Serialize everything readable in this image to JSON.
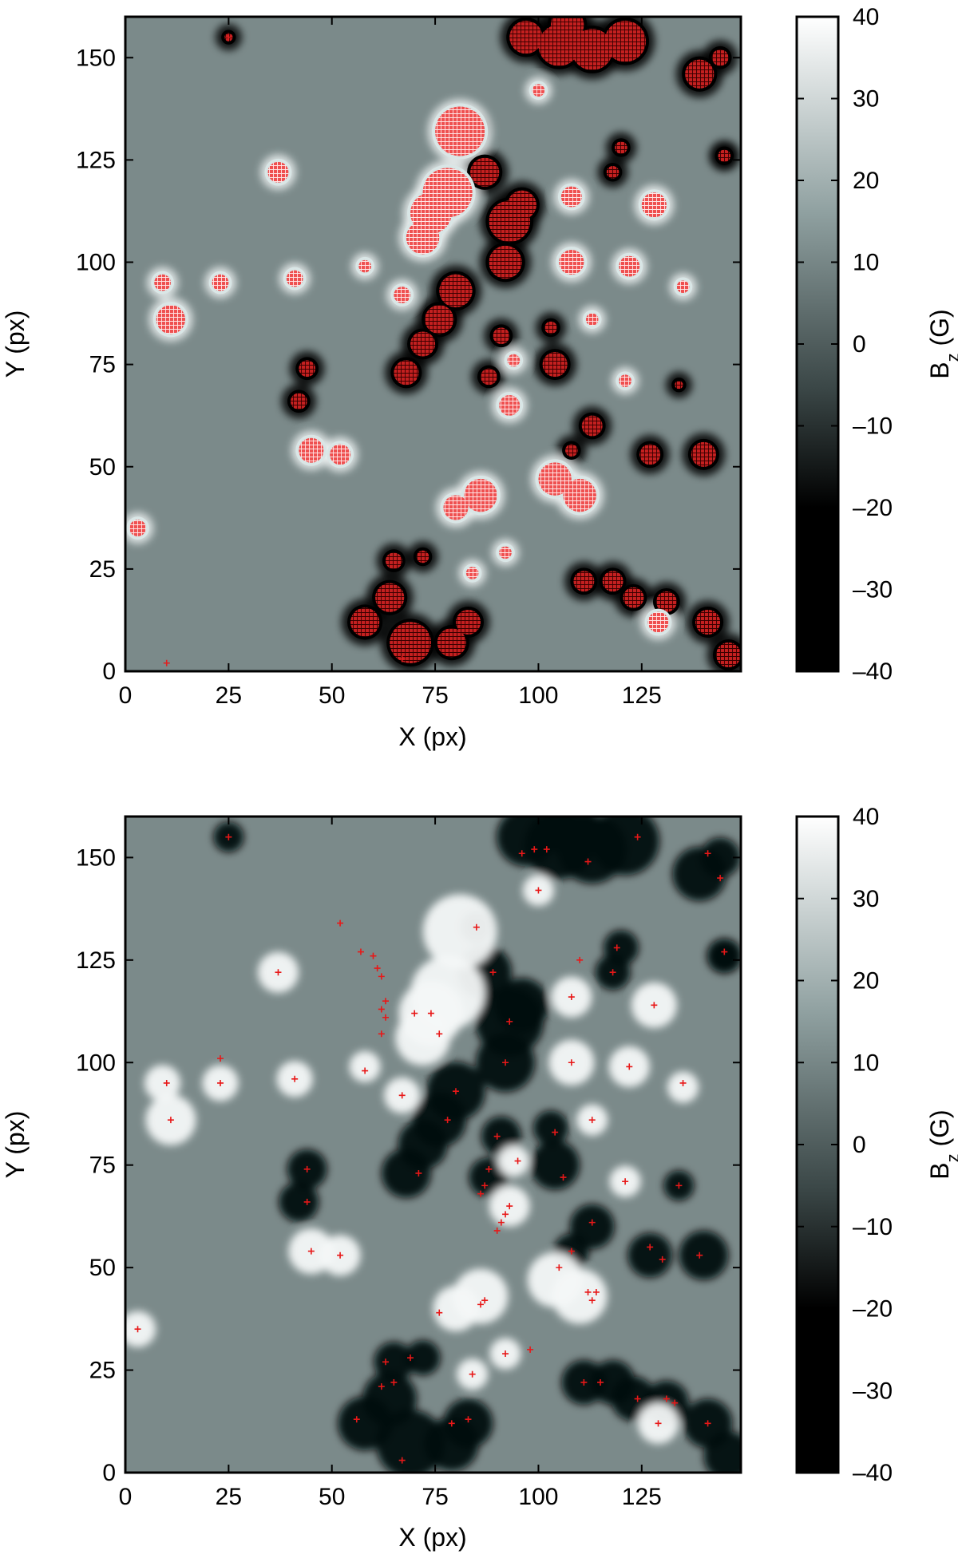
{
  "chart_data": [
    {
      "type": "heatmap",
      "name": "top-panel",
      "xlabel": "X (px)",
      "ylabel": "Y (px)",
      "xlim": [
        0,
        149
      ],
      "ylim": [
        0,
        160
      ],
      "x_ticks": [
        0,
        25,
        50,
        75,
        100,
        125
      ],
      "x_tick_labels": [
        "0",
        "25",
        "50",
        "75",
        "100",
        "125"
      ],
      "y_ticks": [
        0,
        25,
        50,
        75,
        100,
        125,
        150
      ],
      "y_tick_labels": [
        "0",
        "25",
        "50",
        "75",
        "100",
        "125",
        "150"
      ],
      "grid": false,
      "colorbar": {
        "label": "B",
        "label_sub": "z",
        "label_unit": " (G)",
        "range": [
          -40,
          40
        ],
        "ticks": [
          -40,
          -30,
          -20,
          -10,
          0,
          10,
          20,
          30,
          40
        ],
        "tick_labels": [
          "–40",
          "–30",
          "–20",
          "–10",
          "0",
          "10",
          "20",
          "30",
          "40"
        ],
        "colormap": [
          "#000000",
          "#3f4b4b",
          "#8c9a9a",
          "#ffffff"
        ]
      },
      "overlay": "feature regions marked with red crosses; positive regions outlined in light, negative regions outlined in black",
      "positive_regions": [
        [
          81,
          132,
          6
        ],
        [
          78,
          117,
          6
        ],
        [
          74,
          112,
          5
        ],
        [
          72,
          106,
          4
        ],
        [
          37,
          122,
          2.5
        ],
        [
          11,
          86,
          3.5
        ],
        [
          9,
          95,
          2
        ],
        [
          23,
          95,
          2
        ],
        [
          41,
          96,
          2
        ],
        [
          58,
          99,
          1.5
        ],
        [
          67,
          92,
          2
        ],
        [
          45,
          54,
          3
        ],
        [
          52,
          53,
          2.5
        ],
        [
          3,
          35,
          2
        ],
        [
          86,
          43,
          4
        ],
        [
          80,
          40,
          3
        ],
        [
          93,
          65,
          2.5
        ],
        [
          94,
          76,
          1.5
        ],
        [
          104,
          47,
          4
        ],
        [
          110,
          43,
          4
        ],
        [
          108,
          100,
          3
        ],
        [
          122,
          99,
          2.5
        ],
        [
          128,
          114,
          3
        ],
        [
          108,
          116,
          2.5
        ],
        [
          129,
          12,
          2.5
        ],
        [
          100,
          142,
          1.5
        ],
        [
          113,
          86,
          1.5
        ],
        [
          121,
          71,
          1.5
        ],
        [
          135,
          94,
          1.5
        ],
        [
          92,
          29,
          1.5
        ],
        [
          84,
          24,
          1.5
        ]
      ],
      "negative_regions": [
        [
          97,
          155,
          4
        ],
        [
          105,
          153,
          5
        ],
        [
          113,
          152,
          5
        ],
        [
          121,
          154,
          5
        ],
        [
          107,
          158,
          4
        ],
        [
          139,
          146,
          3.5
        ],
        [
          144,
          150,
          2
        ],
        [
          145,
          126,
          1.5
        ],
        [
          25,
          155,
          1
        ],
        [
          85,
          133,
          1.2
        ],
        [
          87,
          122,
          3.5
        ],
        [
          93,
          110,
          5
        ],
        [
          92,
          100,
          4
        ],
        [
          96,
          114,
          3.5
        ],
        [
          80,
          93,
          4
        ],
        [
          76,
          86,
          3.5
        ],
        [
          72,
          80,
          3
        ],
        [
          68,
          73,
          3
        ],
        [
          44,
          74,
          2
        ],
        [
          42,
          66,
          2
        ],
        [
          91,
          82,
          2
        ],
        [
          88,
          72,
          2
        ],
        [
          104,
          75,
          3
        ],
        [
          103,
          84,
          1.5
        ],
        [
          113,
          60,
          2.5
        ],
        [
          108,
          54,
          1.5
        ],
        [
          127,
          53,
          2.5
        ],
        [
          140,
          53,
          3
        ],
        [
          111,
          22,
          2.5
        ],
        [
          118,
          22,
          2.5
        ],
        [
          123,
          18,
          2.5
        ],
        [
          131,
          17,
          2.5
        ],
        [
          141,
          12,
          3
        ],
        [
          146,
          4,
          3
        ],
        [
          65,
          27,
          2
        ],
        [
          64,
          18,
          3.5
        ],
        [
          58,
          12,
          3.5
        ],
        [
          72,
          28,
          1.5
        ],
        [
          69,
          7,
          5
        ],
        [
          79,
          7,
          3.5
        ],
        [
          83,
          12,
          3
        ],
        [
          120,
          128,
          1.5
        ],
        [
          118,
          122,
          1.5
        ],
        [
          134,
          70,
          1
        ],
        [
          145,
          126,
          1.2
        ]
      ],
      "isolated_marks": [
        [
          10,
          2
        ],
        [
          67,
          3
        ],
        [
          25,
          155
        ]
      ]
    },
    {
      "type": "heatmap",
      "name": "bottom-panel",
      "xlabel": "X (px)",
      "ylabel": "Y (px)",
      "xlim": [
        0,
        149
      ],
      "ylim": [
        0,
        160
      ],
      "x_ticks": [
        0,
        25,
        50,
        75,
        100,
        125
      ],
      "x_tick_labels": [
        "0",
        "25",
        "50",
        "75",
        "100",
        "125"
      ],
      "y_ticks": [
        0,
        25,
        50,
        75,
        100,
        125,
        150
      ],
      "y_tick_labels": [
        "0",
        "25",
        "50",
        "75",
        "100",
        "125",
        "150"
      ],
      "grid": false,
      "colorbar": {
        "label": "B",
        "label_sub": "z",
        "label_unit": " (G)",
        "range": [
          -40,
          40
        ],
        "ticks": [
          -40,
          -30,
          -20,
          -10,
          0,
          10,
          20,
          30,
          40
        ],
        "tick_labels": [
          "–40",
          "–30",
          "–20",
          "–10",
          "0",
          "10",
          "20",
          "30",
          "40"
        ],
        "colormap": [
          "#000000",
          "#3f4b4b",
          "#8c9a9a",
          "#ffffff"
        ]
      },
      "overlay": "feature centroid points marked with small red crosses",
      "points": [
        [
          25,
          155
        ],
        [
          96,
          151
        ],
        [
          99,
          152
        ],
        [
          102,
          152
        ],
        [
          112,
          149
        ],
        [
          124,
          155
        ],
        [
          141,
          151
        ],
        [
          144,
          145
        ],
        [
          145,
          127
        ],
        [
          85,
          133
        ],
        [
          100,
          142
        ],
        [
          52,
          134
        ],
        [
          57,
          127
        ],
        [
          60,
          126
        ],
        [
          61,
          123
        ],
        [
          62,
          121
        ],
        [
          37,
          122
        ],
        [
          89,
          122
        ],
        [
          110,
          125
        ],
        [
          119,
          128
        ],
        [
          118,
          122
        ],
        [
          63,
          115
        ],
        [
          62,
          113
        ],
        [
          63,
          111
        ],
        [
          62,
          107
        ],
        [
          70,
          112
        ],
        [
          74,
          112
        ],
        [
          76,
          107
        ],
        [
          128,
          114
        ],
        [
          93,
          110
        ],
        [
          108,
          116
        ],
        [
          10,
          95
        ],
        [
          23,
          101
        ],
        [
          23,
          95
        ],
        [
          41,
          96
        ],
        [
          58,
          98
        ],
        [
          67,
          92
        ],
        [
          92,
          100
        ],
        [
          108,
          100
        ],
        [
          122,
          99
        ],
        [
          135,
          95
        ],
        [
          80,
          93
        ],
        [
          78,
          86
        ],
        [
          11,
          86
        ],
        [
          113,
          86
        ],
        [
          90,
          82
        ],
        [
          104,
          83
        ],
        [
          88,
          74
        ],
        [
          95,
          76
        ],
        [
          71,
          73
        ],
        [
          44,
          74
        ],
        [
          87,
          70
        ],
        [
          86,
          68
        ],
        [
          106,
          72
        ],
        [
          121,
          71
        ],
        [
          134,
          70
        ],
        [
          44,
          66
        ],
        [
          93,
          65
        ],
        [
          92,
          63
        ],
        [
          91,
          61
        ],
        [
          90,
          59
        ],
        [
          113,
          61
        ],
        [
          45,
          54
        ],
        [
          52,
          53
        ],
        [
          108,
          54
        ],
        [
          127,
          55
        ],
        [
          130,
          52
        ],
        [
          139,
          53
        ],
        [
          105,
          50
        ],
        [
          112,
          44
        ],
        [
          114,
          44
        ],
        [
          113,
          42
        ],
        [
          87,
          42
        ],
        [
          86,
          41
        ],
        [
          76,
          39
        ],
        [
          3,
          35
        ],
        [
          92,
          29
        ],
        [
          98,
          30
        ],
        [
          69,
          28
        ],
        [
          63,
          27
        ],
        [
          84,
          24
        ],
        [
          65,
          22
        ],
        [
          62,
          21
        ],
        [
          111,
          22
        ],
        [
          115,
          22
        ],
        [
          131,
          18
        ],
        [
          124,
          18
        ],
        [
          133,
          17
        ],
        [
          56,
          13
        ],
        [
          83,
          13
        ],
        [
          79,
          12
        ],
        [
          129,
          12
        ],
        [
          141,
          12
        ],
        [
          67,
          3
        ]
      ]
    }
  ]
}
